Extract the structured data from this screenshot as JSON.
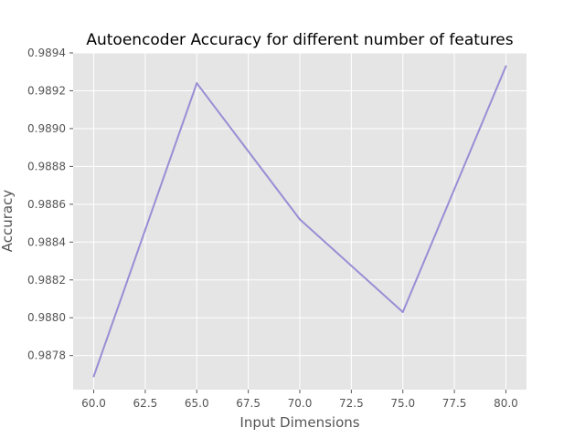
{
  "chart_data": {
    "type": "line",
    "title": "Autoencoder Accuracy for different number of features",
    "xlabel": "Input Dimensions",
    "ylabel": "Accuracy",
    "xlim": [
      59.0,
      81.0
    ],
    "ylim": [
      0.98762,
      0.9894
    ],
    "x_ticks": [
      60.0,
      62.5,
      65.0,
      67.5,
      70.0,
      72.5,
      75.0,
      77.5,
      80.0
    ],
    "x_tick_labels": [
      "60.0",
      "62.5",
      "65.0",
      "67.5",
      "70.0",
      "72.5",
      "75.0",
      "77.5",
      "80.0"
    ],
    "y_ticks": [
      0.9878,
      0.988,
      0.9882,
      0.9884,
      0.9886,
      0.9888,
      0.989,
      0.9892,
      0.9894
    ],
    "y_tick_labels": [
      "0.9878",
      "0.9880",
      "0.9882",
      "0.9884",
      "0.9886",
      "0.9888",
      "0.9890",
      "0.9892",
      "0.9894"
    ],
    "grid": true,
    "style": {
      "background": "#e5e5e5",
      "grid_color": "#ffffff",
      "line_color": "#988ed5"
    },
    "series": [
      {
        "x": [
          60,
          65,
          70,
          75,
          80
        ],
        "values": [
          0.98769,
          0.98924,
          0.98852,
          0.98803,
          0.98933
        ]
      }
    ]
  }
}
